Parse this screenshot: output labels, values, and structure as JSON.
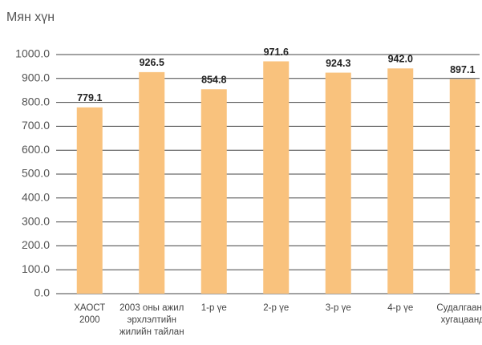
{
  "chart_data": {
    "type": "bar",
    "y_label": "Мян хүн",
    "categories": [
      [
        "ХАОСТ",
        "2000"
      ],
      [
        "2003 оны ажил",
        "эрхлэлтийн",
        "жилийн тайлан"
      ],
      [
        "1-р үе"
      ],
      [
        "2-р үе"
      ],
      [
        "3-р үе"
      ],
      [
        "4-р үе"
      ],
      [
        "Судалгааны",
        "хугацаанд"
      ]
    ],
    "values": [
      779.1,
      926.5,
      854.8,
      971.6,
      924.3,
      942.0,
      897.1
    ],
    "value_labels": [
      "779.1",
      "926.5",
      "854.8",
      "971.6",
      "924.3",
      "942.0",
      "897.1"
    ],
    "color": "#f9c27d",
    "ylim": [
      0,
      1000
    ],
    "yticks": [
      {
        "value": 0,
        "label": "0.0"
      },
      {
        "value": 100,
        "label": "100.0"
      },
      {
        "value": 200,
        "label": "200.0"
      },
      {
        "value": 300,
        "label": "300.0"
      },
      {
        "value": 400,
        "label": "400.0"
      },
      {
        "value": 500,
        "label": "500.0"
      },
      {
        "value": 600,
        "label": "600.0"
      },
      {
        "value": 700,
        "label": "700.0"
      },
      {
        "value": 800,
        "label": "800.0"
      },
      {
        "value": 900,
        "label": "900.0"
      },
      {
        "value": 1000,
        "label": "1000.0"
      }
    ],
    "grid": true
  }
}
